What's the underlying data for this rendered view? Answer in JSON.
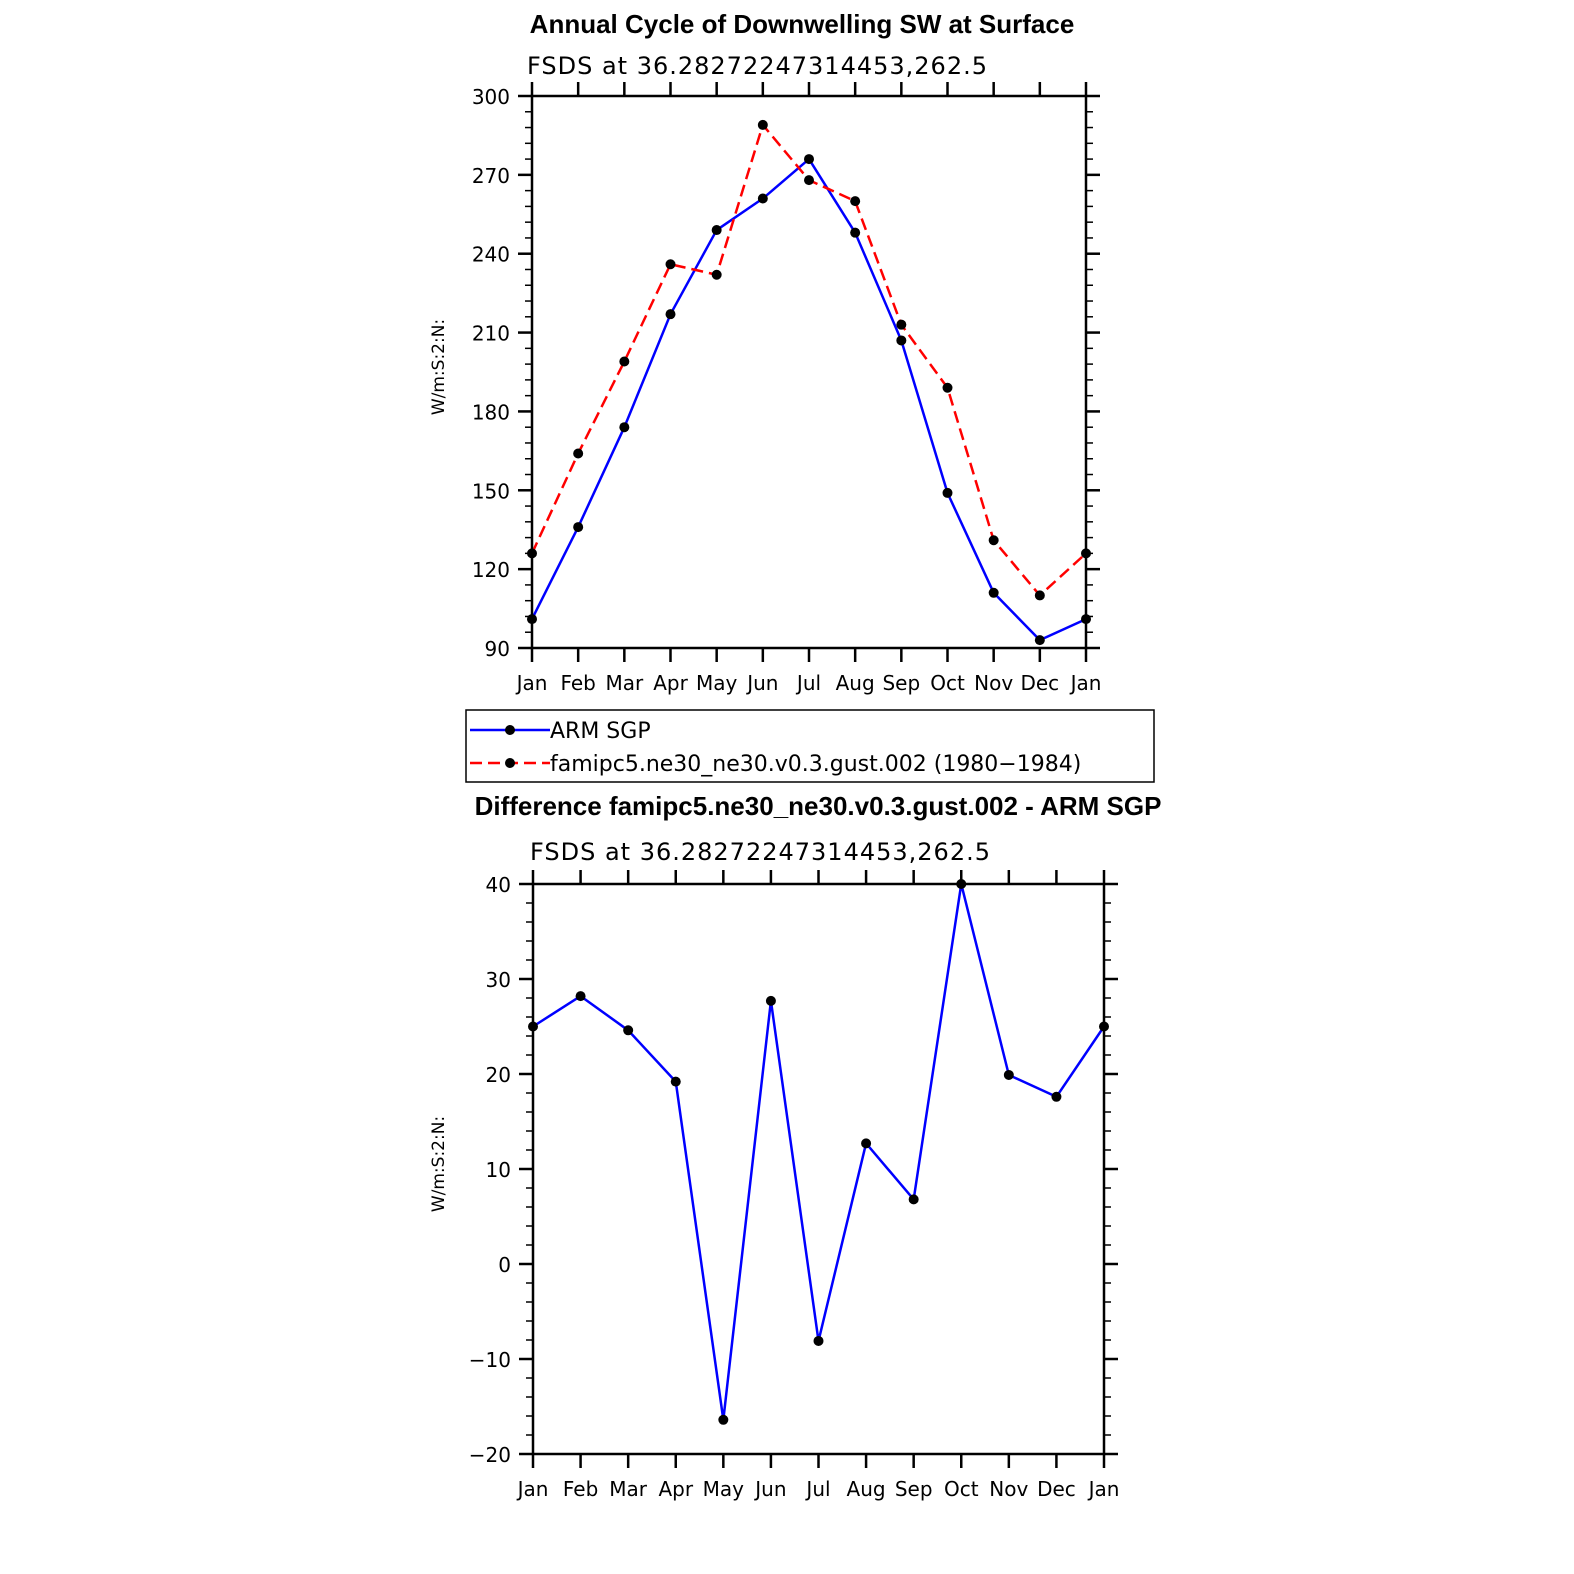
{
  "chart_data": [
    {
      "type": "line",
      "title": "Annual Cycle of Downwelling SW at Surface",
      "subtitle": "FSDS at 36.28272247314453,262.5",
      "ylabel": "W/m:S:2:N:",
      "ylim": [
        90,
        300
      ],
      "yticks": [
        90,
        120,
        150,
        180,
        210,
        240,
        270,
        300
      ],
      "categories": [
        "Jan",
        "Feb",
        "Mar",
        "Apr",
        "May",
        "Jun",
        "Jul",
        "Aug",
        "Sep",
        "Oct",
        "Nov",
        "Dec",
        "Jan"
      ],
      "series": [
        {
          "name": "ARM SGP",
          "color": "#0000ff",
          "dash": "solid",
          "values": [
            101,
            136,
            174,
            217,
            249,
            261,
            276,
            248,
            207,
            149,
            111,
            93,
            101
          ]
        },
        {
          "name": "famipc5.ne30_ne30.v0.3.gust.002 (1980−1984)",
          "color": "#ff0000",
          "dash": "dashed",
          "values": [
            126,
            164,
            199,
            236,
            232,
            289,
            268,
            260,
            213,
            189,
            131,
            110,
            126
          ]
        }
      ],
      "legend": "below"
    },
    {
      "type": "line",
      "title": "Difference famipc5.ne30_ne30.v0.3.gust.002 - ARM SGP",
      "subtitle": "FSDS at 36.28272247314453,262.5",
      "ylabel": "W/m:S:2:N:",
      "ylim": [
        -20,
        40
      ],
      "yticks": [
        -20,
        -10,
        0,
        10,
        20,
        30,
        40
      ],
      "ytick_labels": [
        "−20",
        "−10",
        "0",
        "10",
        "20",
        "30",
        "40"
      ],
      "categories": [
        "Jan",
        "Feb",
        "Mar",
        "Apr",
        "May",
        "Jun",
        "Jul",
        "Aug",
        "Sep",
        "Oct",
        "Nov",
        "Dec",
        "Jan"
      ],
      "series": [
        {
          "color": "#0000ff",
          "dash": "solid",
          "values": [
            25,
            28.2,
            24.6,
            19.2,
            -16.4,
            27.7,
            -8.1,
            12.7,
            6.8,
            40,
            19.9,
            17.6,
            25
          ]
        }
      ]
    }
  ]
}
